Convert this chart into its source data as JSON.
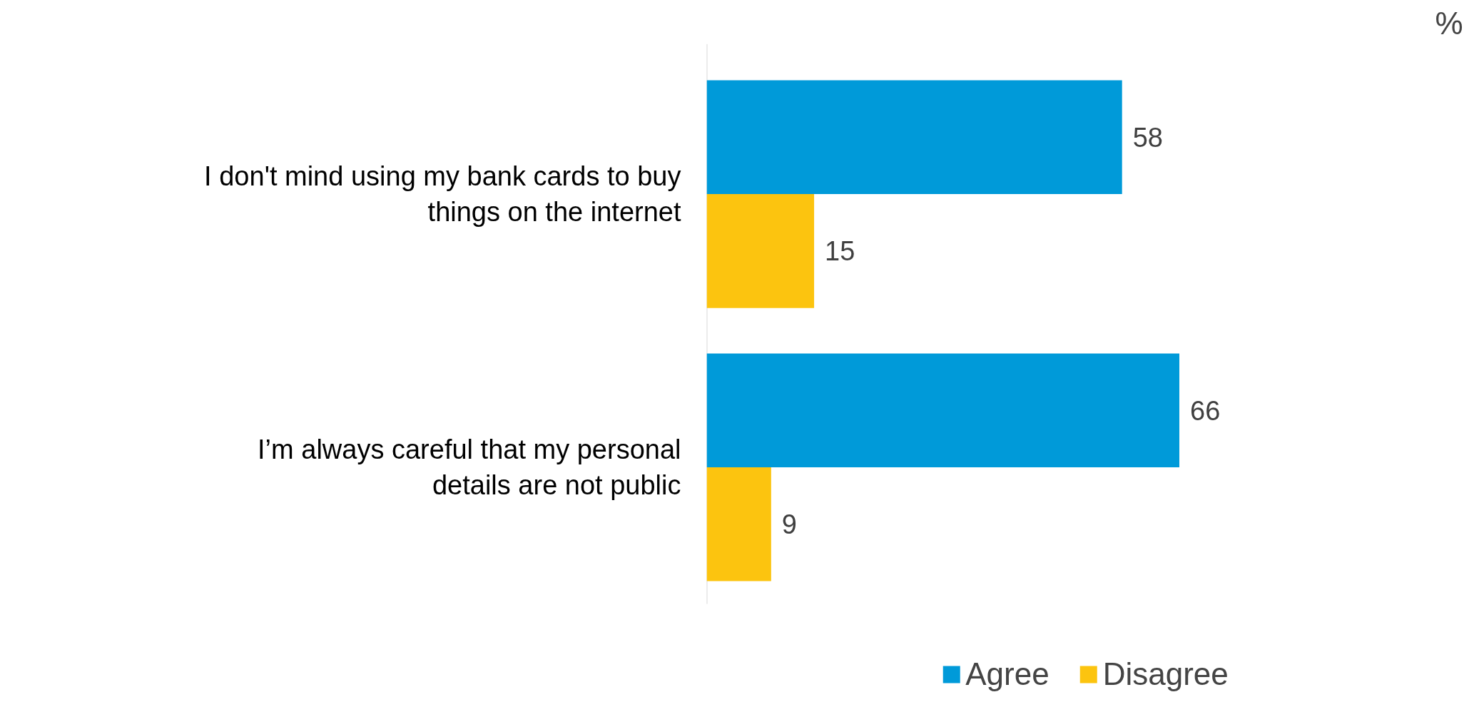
{
  "chart_data": {
    "type": "bar",
    "orientation": "horizontal",
    "categories": [
      "I don't mind using my bank cards to buy things on the internet",
      "I’m always careful that my personal details are not public"
    ],
    "series": [
      {
        "name": "Agree",
        "color": "#009ad9",
        "values": [
          58,
          66
        ]
      },
      {
        "name": "Disagree",
        "color": "#fcc40f",
        "values": [
          15,
          9
        ]
      }
    ],
    "data_labels": true,
    "legend": "bottom",
    "grid": false,
    "annotations": [
      "%"
    ]
  }
}
